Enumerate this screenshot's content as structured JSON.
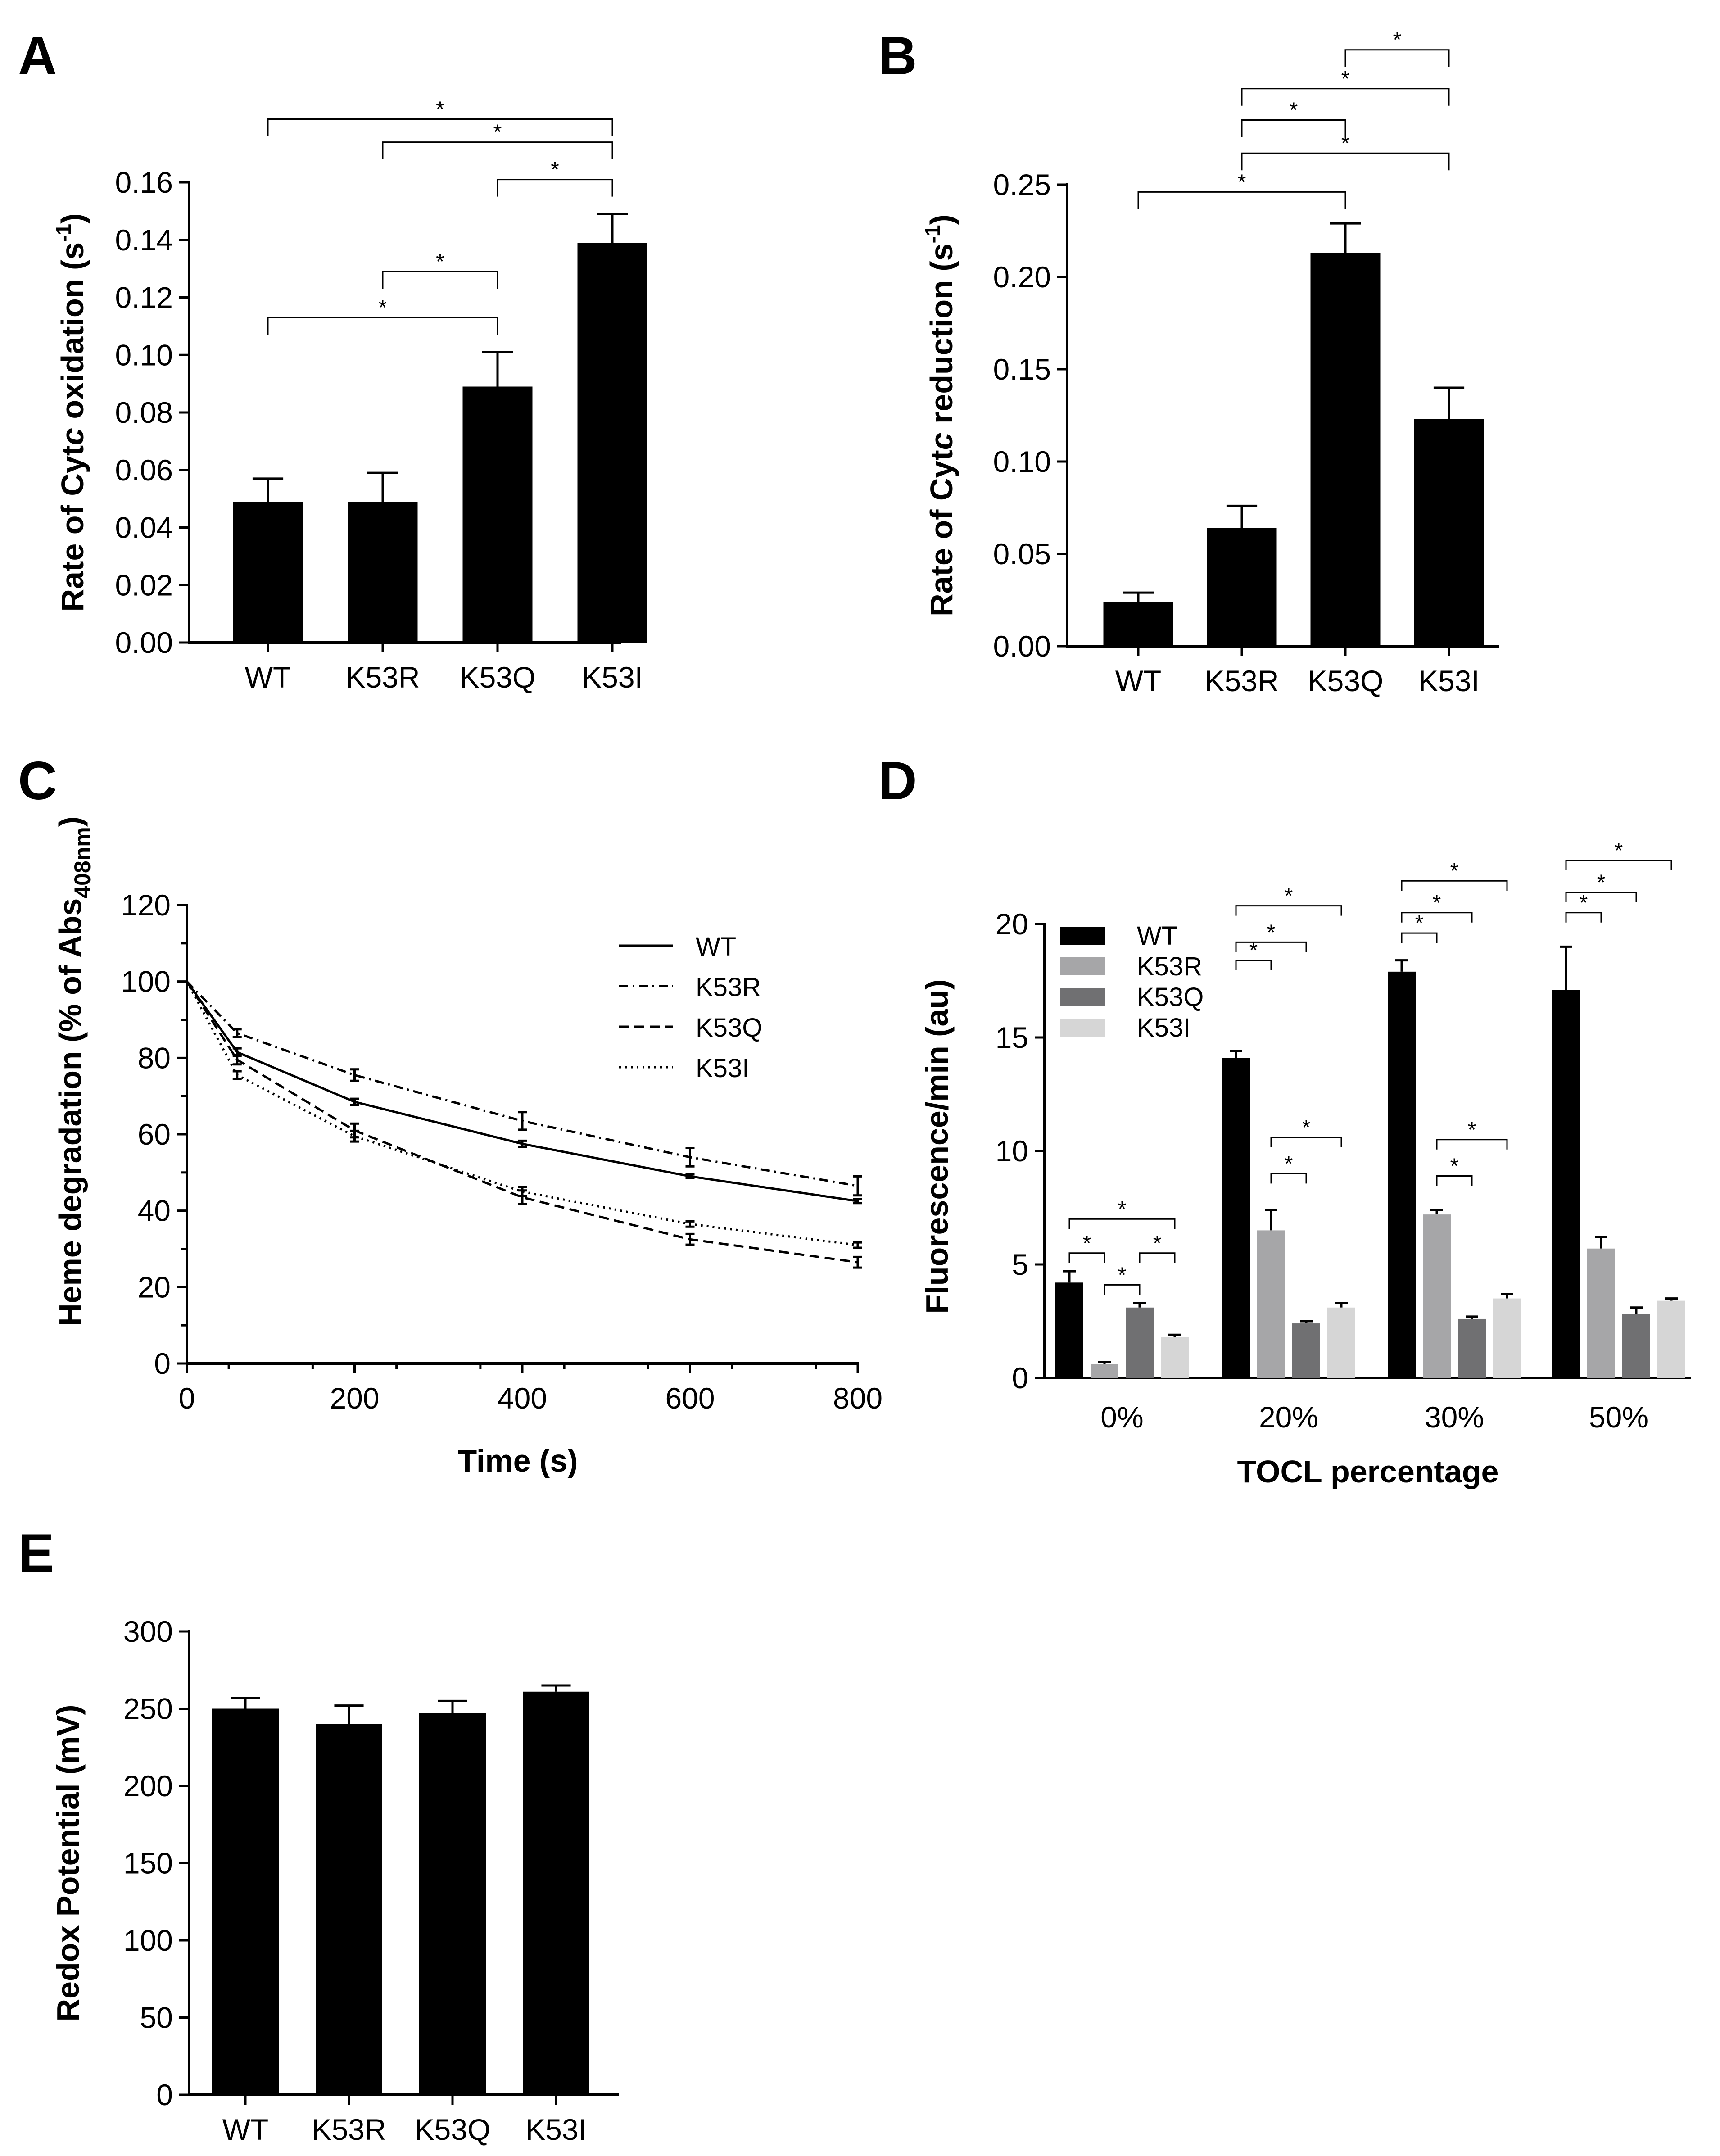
{
  "chart_data": [
    {
      "id": "A",
      "panel_label": "A",
      "type": "bar",
      "categories": [
        "WT",
        "K53R",
        "K53Q",
        "K53I"
      ],
      "values": [
        0.049,
        0.049,
        0.089,
        0.139
      ],
      "errors": [
        0.008,
        0.01,
        0.012,
        0.01
      ],
      "ylabel_pre": "Rate of Cyt",
      "ylabel_ital": "c",
      "ylabel_post": " oxidation (s",
      "ylabel_sup": "-1",
      "ylabel_end": ")",
      "ylim": [
        0,
        0.16
      ],
      "yticks": [
        0,
        0.02,
        0.04,
        0.06,
        0.08,
        0.1,
        0.12,
        0.14,
        0.16
      ],
      "ytick_labels": [
        "0.00",
        "0.02",
        "0.04",
        "0.06",
        "0.08",
        "0.10",
        "0.12",
        "0.14",
        "0.16"
      ],
      "bar_color": "#000000",
      "significance": [
        {
          "from": 0,
          "to": 3,
          "level": 0.182,
          "label": "*"
        },
        {
          "from": 1,
          "to": 3,
          "level": 0.174,
          "label": "*"
        },
        {
          "from": 2,
          "to": 3,
          "level": 0.161,
          "label": "*"
        },
        {
          "from": 1,
          "to": 2,
          "level": 0.129,
          "label": "*"
        },
        {
          "from": 0,
          "to": 2,
          "level": 0.113,
          "label": "*"
        }
      ]
    },
    {
      "id": "B",
      "panel_label": "B",
      "type": "bar",
      "categories": [
        "WT",
        "K53R",
        "K53Q",
        "K53I"
      ],
      "values": [
        0.024,
        0.064,
        0.213,
        0.123
      ],
      "errors": [
        0.005,
        0.012,
        0.016,
        0.017
      ],
      "ylabel_pre": "Rate of Cyt",
      "ylabel_ital": "c",
      "ylabel_post": " reduction (s",
      "ylabel_sup": "-1",
      "ylabel_end": ")",
      "ylim": [
        0,
        0.25
      ],
      "yticks": [
        0,
        0.05,
        0.1,
        0.15,
        0.2,
        0.25
      ],
      "ytick_labels": [
        "0.00",
        "0.05",
        "0.10",
        "0.15",
        "0.20",
        "0.25"
      ],
      "bar_color": "#000000",
      "significance": [
        {
          "from": 2,
          "to": 3,
          "level": 0.323,
          "label": "*"
        },
        {
          "from": 1,
          "to": 3,
          "level": 0.302,
          "label": "*"
        },
        {
          "from": 1,
          "to": 2,
          "level": 0.285,
          "label": "*"
        },
        {
          "from": 1,
          "to": 3,
          "level": 0.267,
          "label": "*"
        },
        {
          "from": 0,
          "to": 2,
          "level": 0.246,
          "label": "*"
        }
      ]
    },
    {
      "id": "C",
      "panel_label": "C",
      "type": "line",
      "xlabel": "Time (s)",
      "ylabel": "Heme degradation (% of Abs",
      "ylabel_sub": "408nm",
      "ylabel_end": ")",
      "xlim": [
        0,
        800
      ],
      "ylim": [
        0,
        120
      ],
      "xticks": [
        0,
        200,
        400,
        600,
        800
      ],
      "yticks": [
        0,
        20,
        40,
        60,
        80,
        100,
        120
      ],
      "series": [
        {
          "name": "WT",
          "dash": "solid",
          "x": [
            0,
            60,
            200,
            400,
            600,
            800
          ],
          "values": [
            100,
            81.5,
            68.5,
            57.5,
            49,
            42.5
          ],
          "errors": [
            0,
            1.0,
            0.8,
            0.8,
            0.5,
            0.5
          ]
        },
        {
          "name": "K53R",
          "dash": "dashdot",
          "x": [
            0,
            60,
            200,
            400,
            600,
            800
          ],
          "values": [
            100,
            86.5,
            75.5,
            63.5,
            54,
            46.5
          ],
          "errors": [
            0,
            1.0,
            1.5,
            2.3,
            2.4,
            2.5
          ]
        },
        {
          "name": "K53Q",
          "dash": "dashed",
          "x": [
            0,
            60,
            200,
            400,
            600,
            800
          ],
          "values": [
            100,
            79.5,
            61,
            43.5,
            32.5,
            26.5
          ],
          "errors": [
            0,
            1.2,
            1.8,
            1.8,
            1.4,
            1.4
          ]
        },
        {
          "name": "K53I",
          "dash": "dotted",
          "x": [
            0,
            60,
            200,
            400,
            600,
            800
          ],
          "values": [
            100,
            75.5,
            59.5,
            45,
            36.5,
            31
          ],
          "errors": [
            0,
            1.0,
            1.4,
            1.2,
            0.7,
            0.7
          ]
        }
      ]
    },
    {
      "id": "D",
      "panel_label": "D",
      "type": "bar",
      "xlabel": "TOCL percentage",
      "ylabel": "Fluorescence/min (au)",
      "categories": [
        "0%",
        "20%",
        "30%",
        "50%"
      ],
      "ylim": [
        0,
        20
      ],
      "yticks": [
        0,
        5,
        10,
        15,
        20
      ],
      "series": [
        {
          "name": "WT",
          "color": "#000000",
          "values": [
            4.2,
            14.1,
            17.9,
            17.1
          ],
          "errors": [
            0.5,
            0.3,
            0.5,
            1.9
          ]
        },
        {
          "name": "K53R",
          "color": "#a6a6a8",
          "values": [
            0.6,
            6.5,
            7.2,
            5.7
          ],
          "errors": [
            0.1,
            0.9,
            0.2,
            0.5
          ]
        },
        {
          "name": "K53Q",
          "color": "#707072",
          "values": [
            3.1,
            2.4,
            2.6,
            2.8
          ],
          "errors": [
            0.2,
            0.1,
            0.1,
            0.3
          ]
        },
        {
          "name": "K53I",
          "color": "#d6d6d6",
          "values": [
            1.8,
            3.1,
            3.5,
            3.4
          ],
          "errors": [
            0.1,
            0.2,
            0.2,
            0.1
          ]
        }
      ],
      "significance": [
        {
          "group": 0,
          "from": 0,
          "to": 1,
          "level": 5.5,
          "label": "*"
        },
        {
          "group": 0,
          "from": 0,
          "to": 3,
          "level": 7.0,
          "label": "*"
        },
        {
          "group": 0,
          "from": 1,
          "to": 2,
          "level": 4.1,
          "label": "*"
        },
        {
          "group": 0,
          "from": 2,
          "to": 3,
          "level": 5.5,
          "label": "*"
        },
        {
          "group": 1,
          "from": 0,
          "to": 1,
          "level": 18.4,
          "label": "*"
        },
        {
          "group": 1,
          "from": 0,
          "to": 2,
          "level": 19.2,
          "label": "*"
        },
        {
          "group": 1,
          "from": 0,
          "to": 3,
          "level": 20.8,
          "label": "*"
        },
        {
          "group": 1,
          "from": 1,
          "to": 2,
          "level": 9.0,
          "label": "*"
        },
        {
          "group": 1,
          "from": 1,
          "to": 3,
          "level": 10.6,
          "label": "*"
        },
        {
          "group": 2,
          "from": 0,
          "to": 1,
          "level": 19.6,
          "label": "*"
        },
        {
          "group": 2,
          "from": 0,
          "to": 2,
          "level": 20.5,
          "label": "*"
        },
        {
          "group": 2,
          "from": 0,
          "to": 3,
          "level": 21.9,
          "label": "*"
        },
        {
          "group": 2,
          "from": 1,
          "to": 2,
          "level": 8.9,
          "label": "*"
        },
        {
          "group": 2,
          "from": 1,
          "to": 3,
          "level": 10.5,
          "label": "*"
        },
        {
          "group": 3,
          "from": 0,
          "to": 1,
          "level": 20.5,
          "label": "*"
        },
        {
          "group": 3,
          "from": 0,
          "to": 2,
          "level": 21.4,
          "label": "*"
        },
        {
          "group": 3,
          "from": 0,
          "to": 3,
          "level": 22.8,
          "label": "*"
        }
      ]
    },
    {
      "id": "E",
      "panel_label": "E",
      "type": "bar",
      "categories": [
        "WT",
        "K53R",
        "K53Q",
        "K53I"
      ],
      "values": [
        250,
        240,
        247,
        261
      ],
      "errors": [
        7,
        12,
        8,
        4
      ],
      "ylabel": "Redox Potential (mV)",
      "ylim": [
        0,
        300
      ],
      "yticks": [
        0,
        50,
        100,
        150,
        200,
        250,
        300
      ],
      "bar_color": "#000000"
    }
  ]
}
